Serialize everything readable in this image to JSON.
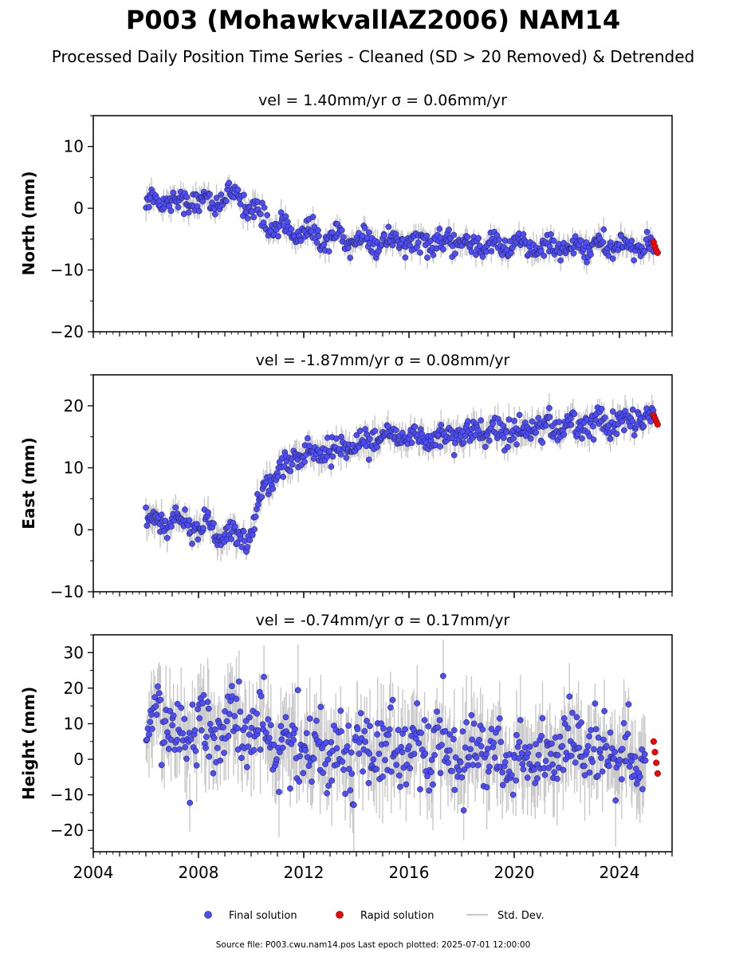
{
  "title": "P003 (MohawkvallAZ2006) NAM14",
  "subtitle": "Processed Daily Position Time Series - Cleaned (SD > 20 Removed) & Detrended",
  "colors": {
    "final": "#4d4dff",
    "rapid": "#ff0000",
    "std": "#c8c8c8",
    "edge": "#1a1a1a"
  },
  "legend": {
    "final": "Final solution",
    "rapid": "Rapid solution",
    "std": "Std. Dev."
  },
  "footer": "Source file: P003.cwu.nam14.pos  Last epoch plotted: 2025-07-01 12:00:00",
  "chart_data": [
    {
      "type": "scatter",
      "title": "vel = 1.40mm/yr   σ = 0.06mm/yr",
      "ylabel": "North (mm)",
      "xlim": [
        2004,
        2026
      ],
      "ylim": [
        -20,
        15
      ],
      "yticks": [
        -20,
        -10,
        0,
        10
      ],
      "xticks": [
        2004,
        2008,
        2012,
        2016,
        2020,
        2024
      ],
      "x_tick_labels_shown": false,
      "series": [
        {
          "name": "Final solution",
          "x": [
            2006.0,
            2006.5,
            2007.0,
            2007.5,
            2008.0,
            2008.5,
            2009.0,
            2009.5,
            2009.9,
            2010.2,
            2010.5,
            2011.0,
            2011.5,
            2012.0,
            2012.5,
            2013.0,
            2014.0,
            2015.0,
            2016.0,
            2017.0,
            2018.0,
            2019.0,
            2020.0,
            2021.0,
            2022.0,
            2023.0,
            2024.0,
            2025.3
          ],
          "y": [
            1.0,
            1.5,
            1.2,
            1.0,
            1.5,
            1.0,
            1.5,
            1.8,
            1.0,
            -1.0,
            -2.0,
            -3.0,
            -3.5,
            -4.0,
            -4.5,
            -5.0,
            -5.2,
            -5.5,
            -5.5,
            -5.8,
            -5.8,
            -6.0,
            -6.0,
            -6.5,
            -6.5,
            -6.0,
            -6.2,
            -6.5
          ]
        },
        {
          "name": "Rapid solution",
          "x": [
            2025.3,
            2025.35,
            2025.4,
            2025.45
          ],
          "y": [
            -5.5,
            -6.2,
            -6.8,
            -7.2
          ]
        }
      ]
    },
    {
      "type": "scatter",
      "title": "vel = -1.87mm/yr   σ = 0.08mm/yr",
      "ylabel": "East (mm)",
      "xlim": [
        2004,
        2026
      ],
      "ylim": [
        -10,
        25
      ],
      "yticks": [
        -10,
        0,
        10,
        20
      ],
      "xticks": [
        2004,
        2008,
        2012,
        2016,
        2020,
        2024
      ],
      "x_tick_labels_shown": false,
      "series": [
        {
          "name": "Final solution",
          "x": [
            2006.0,
            2006.5,
            2007.0,
            2007.5,
            2008.0,
            2008.5,
            2009.0,
            2009.5,
            2009.9,
            2010.1,
            2010.3,
            2010.6,
            2011.0,
            2011.5,
            2012.0,
            2012.5,
            2013.0,
            2014.0,
            2015.0,
            2016.0,
            2017.0,
            2018.0,
            2019.0,
            2020.0,
            2021.0,
            2022.0,
            2023.0,
            2024.0,
            2025.0,
            2025.3
          ],
          "y": [
            0.5,
            1.5,
            1.0,
            1.0,
            0.5,
            0.0,
            -0.5,
            -1.0,
            -1.5,
            0.5,
            5.0,
            8.0,
            9.5,
            11.0,
            12.0,
            12.5,
            13.0,
            14.0,
            14.5,
            15.0,
            15.2,
            15.5,
            15.8,
            16.0,
            16.5,
            16.8,
            17.0,
            17.2,
            17.5,
            17.8
          ]
        },
        {
          "name": "Rapid solution",
          "x": [
            2025.3,
            2025.35,
            2025.4,
            2025.45
          ],
          "y": [
            18.5,
            18.0,
            17.5,
            17.0
          ]
        }
      ]
    },
    {
      "type": "scatter",
      "title": "vel = -0.74mm/yr   σ = 0.17mm/yr",
      "ylabel": "Height (mm)",
      "xlim": [
        2004,
        2026
      ],
      "ylim": [
        -26,
        35
      ],
      "yticks": [
        -20,
        -10,
        0,
        10,
        20,
        30
      ],
      "xticks": [
        2004,
        2008,
        2012,
        2016,
        2020,
        2024
      ],
      "x_tick_labels_shown": true,
      "series": [
        {
          "name": "Final solution",
          "x": [
            2006.0,
            2006.5,
            2007.0,
            2007.5,
            2008.0,
            2008.5,
            2009.0,
            2009.5,
            2010.0,
            2010.5,
            2011.0,
            2012.0,
            2013.0,
            2014.0,
            2015.0,
            2016.0,
            2017.0,
            2018.0,
            2019.0,
            2020.0,
            2021.0,
            2022.0,
            2023.0,
            2024.0,
            2025.0
          ],
          "y": [
            5.0,
            12.0,
            10.0,
            8.0,
            10.0,
            8.0,
            9.0,
            10.0,
            8.0,
            5.0,
            4.0,
            4.0,
            3.0,
            3.0,
            3.0,
            2.0,
            2.0,
            1.5,
            1.5,
            1.0,
            1.0,
            1.0,
            0.5,
            0.5,
            0.0
          ]
        },
        {
          "name": "Rapid solution",
          "x": [
            2025.3,
            2025.35,
            2025.4,
            2025.45
          ],
          "y": [
            5.0,
            2.0,
            -1.0,
            -4.0
          ]
        }
      ]
    }
  ]
}
